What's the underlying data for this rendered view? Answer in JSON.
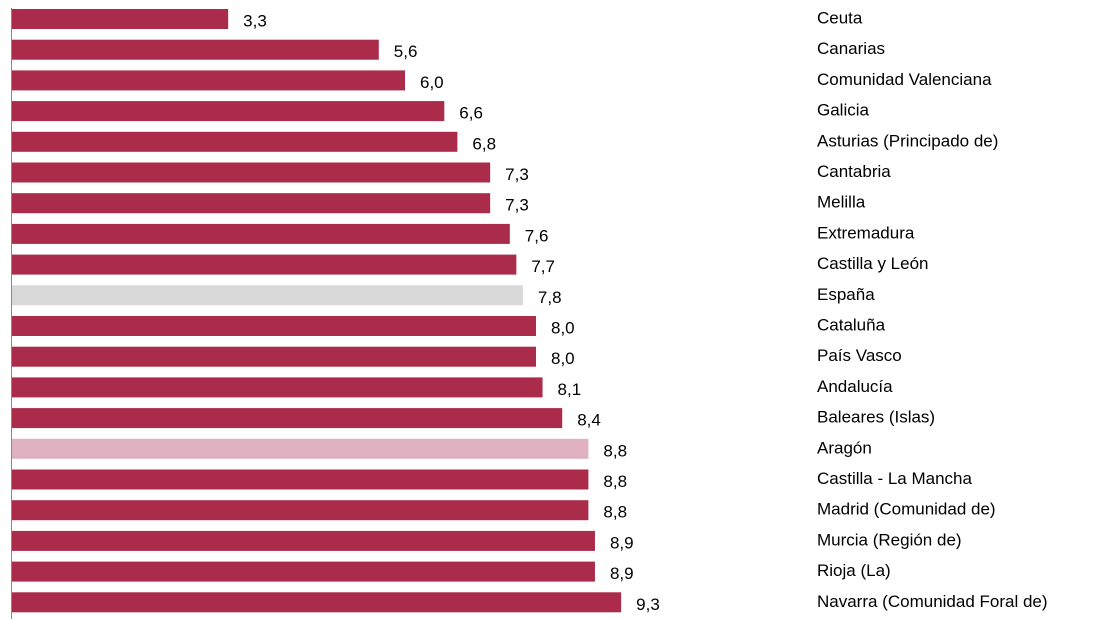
{
  "chart_data": {
    "type": "bar",
    "orientation": "horizontal",
    "categories": [
      "Ceuta",
      "Canarias",
      "Comunidad Valenciana",
      "Galicia",
      "Asturias (Principado de)",
      "Cantabria",
      "Melilla",
      "Extremadura",
      "Castilla y León",
      "España",
      "Cataluña",
      "País Vasco",
      "Andalucía",
      "Baleares (Islas)",
      "Aragón",
      "Castilla - La Mancha",
      "Madrid (Comunidad de)",
      "Murcia (Región de)",
      "Rioja (La)",
      "Navarra (Comunidad Foral de)"
    ],
    "values": [
      3.3,
      5.6,
      6.0,
      6.6,
      6.8,
      7.3,
      7.3,
      7.6,
      7.7,
      7.8,
      8.0,
      8.0,
      8.1,
      8.4,
      8.8,
      8.8,
      8.8,
      8.9,
      8.9,
      9.3
    ],
    "value_labels": [
      "3,3",
      "5,6",
      "6,0",
      "6,6",
      "6,8",
      "7,3",
      "7,3",
      "7,6",
      "7,7",
      "7,8",
      "8,0",
      "8,0",
      "8,1",
      "8,4",
      "8,8",
      "8,8",
      "8,8",
      "8,9",
      "8,9",
      "9,3"
    ],
    "colors": [
      "#aa2b4a",
      "#aa2b4a",
      "#aa2b4a",
      "#aa2b4a",
      "#aa2b4a",
      "#aa2b4a",
      "#aa2b4a",
      "#aa2b4a",
      "#aa2b4a",
      "#d9d9d9",
      "#aa2b4a",
      "#aa2b4a",
      "#aa2b4a",
      "#aa2b4a",
      "#e0b1c0",
      "#aa2b4a",
      "#aa2b4a",
      "#aa2b4a",
      "#aa2b4a",
      "#aa2b4a"
    ],
    "xlim": [
      0,
      12
    ]
  }
}
